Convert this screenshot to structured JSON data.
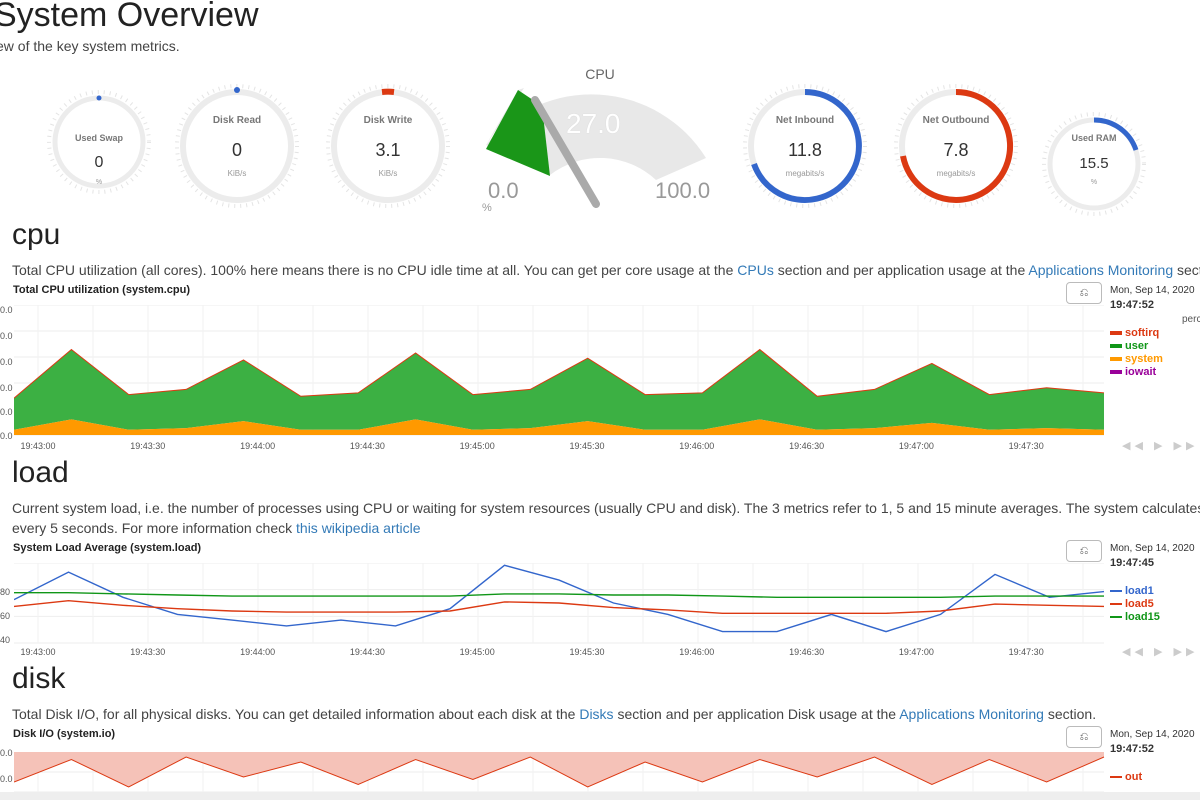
{
  "page": {
    "title": "System Overview",
    "subtitle": "ew of the key system metrics."
  },
  "gauges": {
    "swap": {
      "title": "Used Swap",
      "value": "0",
      "unit": "%",
      "level": 0
    },
    "disk_read": {
      "title": "Disk Read",
      "value": "0",
      "unit": "KiB/s",
      "level": 0
    },
    "disk_write": {
      "title": "Disk Write",
      "value": "3.1",
      "unit": "KiB/s",
      "level": 0.02
    },
    "cpu": {
      "title": "CPU",
      "value": "27.0",
      "min": "0.0",
      "max": "100.0",
      "unit": "%",
      "level": 0.27
    },
    "net_in": {
      "title": "Net Inbound",
      "value": "11.8",
      "unit": "megabits/s",
      "level": 0.74
    },
    "net_out": {
      "title": "Net Outbound",
      "value": "7.8",
      "unit": "megabits/s",
      "level": 0.77
    },
    "ram": {
      "title": "Used RAM",
      "value": "15.5",
      "unit": "%",
      "level": 0.155
    }
  },
  "colors": {
    "blue": "#3366cc",
    "red": "#dc3912",
    "green": "#109618",
    "orange": "#ff9900",
    "purple": "#990099",
    "cpu_fill": "#1a9618"
  },
  "sections": {
    "cpu": {
      "heading": "cpu",
      "desc_1": "Total CPU utilization (all cores). 100% here means there is no CPU idle time at all. You can get per core usage at the ",
      "link_1": "CPUs",
      "desc_2": " section and per application usage at the ",
      "link_2": "Applications Monitoring",
      "desc_3": " section.",
      "chart_title": "Total CPU utilization (system.cpu)",
      "date": "Mon, Sep 14, 2020",
      "time": "19:47:52",
      "unit": "perc",
      "legend": [
        "softirq",
        "user",
        "system",
        "iowait"
      ],
      "y_ticks": [
        "0.0",
        "0.0",
        "0.0",
        "0.0",
        "0.0",
        "0.0"
      ]
    },
    "load": {
      "heading": "load",
      "desc_1": "Current system load, i.e. the number of processes using CPU or waiting for system resources (usually CPU and disk). The 3 metrics refer to 1, 5 and 15 minute averages. The system calculates this on",
      "desc_2": "every 5 seconds. For more information check ",
      "link_1": "this wikipedia article",
      "chart_title": "System Load Average (system.load)",
      "date": "Mon, Sep 14, 2020",
      "time": "19:47:45",
      "legend": [
        "load1",
        "load5",
        "load15"
      ],
      "y_ticks": [
        "80",
        "60",
        "40"
      ]
    },
    "disk": {
      "heading": "disk",
      "desc_1": "Total Disk I/O, for all physical disks. You can get detailed information about each disk at the ",
      "link_1": "Disks",
      "desc_2": " section and per application Disk usage at the ",
      "link_2": "Applications Monitoring",
      "desc_3": " section.",
      "chart_title": "Disk I/O (system.io)",
      "date": "Mon, Sep 14, 2020",
      "time": "19:47:52",
      "legend": [
        "out"
      ],
      "y_ticks": [
        "0.0",
        "0.0"
      ]
    }
  },
  "x_ticks": [
    "19:43:00",
    "19:43:30",
    "19:44:00",
    "19:44:30",
    "19:45:00",
    "19:45:30",
    "19:46:00",
    "19:46:30",
    "19:47:00",
    "19:47:30"
  ],
  "nav_controls": "◀◀ ▶ ▶▶ + −",
  "chart_data": [
    {
      "type": "area",
      "title": "Total CPU utilization (system.cpu)",
      "series": [
        {
          "name": "softirq",
          "values": [
            0.3,
            0.3,
            0.3,
            0.3,
            0.3,
            0.3,
            0.3,
            0.3,
            0.3,
            0.3,
            0.3,
            0.3,
            0.3,
            0.3,
            0.3,
            0.3,
            0.3,
            0.3,
            0.3,
            0.3
          ]
        },
        {
          "name": "user",
          "values": [
            18,
            40,
            20,
            22,
            35,
            19,
            21,
            38,
            20,
            22,
            36,
            20,
            21,
            40,
            19,
            22,
            34,
            20,
            23,
            21
          ]
        },
        {
          "name": "system",
          "values": [
            3,
            9,
            3,
            4,
            8,
            3,
            3,
            9,
            3,
            4,
            8,
            3,
            3,
            9,
            3,
            4,
            7,
            3,
            4,
            3
          ]
        },
        {
          "name": "iowait",
          "values": [
            0,
            0,
            0,
            0,
            0,
            0,
            0,
            0,
            0,
            0,
            0,
            0,
            0,
            0,
            0,
            0,
            0,
            0,
            0,
            0
          ]
        }
      ]
    },
    {
      "type": "line",
      "title": "System Load Average (system.load)",
      "x": [
        "19:42:55",
        "19:43:00",
        "19:43:15",
        "19:43:30",
        "19:43:45",
        "19:44:00",
        "19:44:15",
        "19:44:30",
        "19:44:45",
        "19:45:00",
        "19:45:15",
        "19:45:30",
        "19:45:45",
        "19:46:00",
        "19:46:15",
        "19:46:30",
        "19:46:45",
        "19:47:00",
        "19:47:15",
        "19:47:30",
        "19:47:45"
      ],
      "series": [
        {
          "name": "load1",
          "values": [
            68,
            92,
            70,
            55,
            50,
            45,
            50,
            45,
            60,
            98,
            85,
            65,
            55,
            40,
            40,
            55,
            40,
            55,
            90,
            70,
            75
          ]
        },
        {
          "name": "load5",
          "values": [
            62,
            67,
            63,
            60,
            58,
            57,
            57,
            57,
            58,
            66,
            65,
            61,
            59,
            56,
            56,
            56,
            56,
            58,
            64,
            63,
            62
          ]
        },
        {
          "name": "load15",
          "values": [
            74,
            74,
            73,
            72,
            71,
            71,
            71,
            71,
            71,
            73,
            73,
            72,
            72,
            71,
            70,
            70,
            70,
            70,
            71,
            71,
            71
          ]
        }
      ]
    },
    {
      "type": "area",
      "title": "Disk I/O (system.io)",
      "series": [
        {
          "name": "out",
          "values": [
            -12,
            -3,
            -14,
            -2,
            -10,
            -4,
            -13,
            -3,
            -11,
            -2,
            -14,
            -4,
            -12,
            -3,
            -10,
            -2,
            -13,
            -3,
            -12,
            -2
          ]
        }
      ]
    }
  ]
}
